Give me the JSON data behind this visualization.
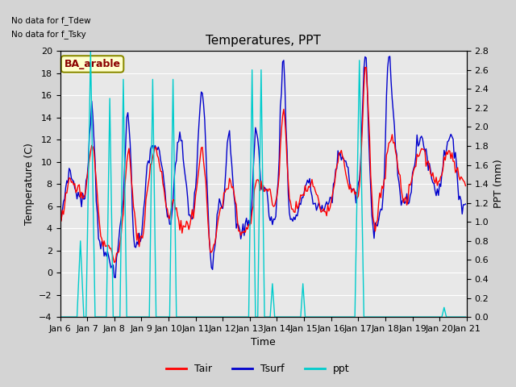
{
  "title": "Temperatures, PPT",
  "xlabel": "Time",
  "ylabel_left": "Temperature (C)",
  "ylabel_right": "PPT (mm)",
  "left_ylim": [
    -4,
    20
  ],
  "right_ylim": [
    0.0,
    2.8
  ],
  "left_yticks": [
    -4,
    -2,
    0,
    2,
    4,
    6,
    8,
    10,
    12,
    14,
    16,
    18,
    20
  ],
  "right_yticks": [
    0.0,
    0.2,
    0.4,
    0.6,
    0.8,
    1.0,
    1.2,
    1.4,
    1.6,
    1.8,
    2.0,
    2.2,
    2.4,
    2.6,
    2.8
  ],
  "no_data_text1": "No data for f_Tdew",
  "no_data_text2": "No data for f_Tsky",
  "box_label": "BA_arable",
  "tair_color": "#ff0000",
  "tsurf_color": "#0000cc",
  "ppt_color": "#00cccc",
  "background_color": "#d4d4d4",
  "plot_bg_color": "#e8e8e8",
  "title_fontsize": 11,
  "axis_label_fontsize": 9,
  "tick_fontsize": 8,
  "legend_fontsize": 9,
  "figsize": [
    6.4,
    4.8
  ],
  "dpi": 100,
  "xtick_labels": [
    "Jan 6",
    "Jan 7",
    "Jan 8",
    "Jan 9",
    "Jan 10",
    "Jan 11",
    "Jan 12",
    "Jan 13",
    "Jan 14",
    "Jan 15",
    "Jan 16",
    "Jan 17",
    "Jan 18",
    "Jan 19",
    "Jan 20",
    "Jan 21"
  ],
  "xtick_positions": [
    0,
    24,
    48,
    72,
    96,
    120,
    144,
    168,
    192,
    216,
    240,
    264,
    288,
    312,
    336,
    360
  ]
}
